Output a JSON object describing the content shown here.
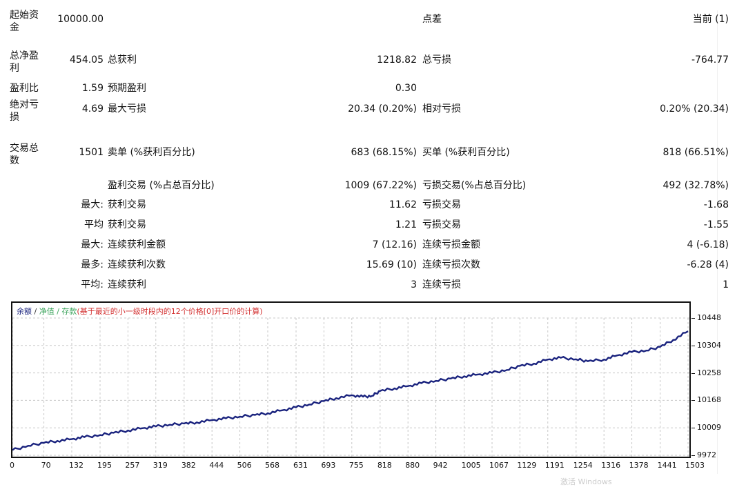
{
  "report": {
    "rows": [
      {
        "l1": "起始资金",
        "v1": "10000.00",
        "l2": "",
        "v2": "",
        "l3": "点差",
        "v3": "当前 (1)"
      },
      {
        "l1": "总净盈利",
        "v1": "454.05",
        "l2": "总获利",
        "v2": "1218.82",
        "l3": "总亏损",
        "v3": "-764.77"
      },
      {
        "l1": "盈利比",
        "v1": "1.59",
        "l2": "预期盈利",
        "v2": "0.30",
        "l3": "",
        "v3": ""
      },
      {
        "l1": "绝对亏损",
        "v1": "4.69",
        "l2": "最大亏损",
        "v2": "20.34 (0.20%)",
        "l3": "相对亏损",
        "v3": "0.20% (20.34)"
      },
      {
        "l1": "交易总数",
        "v1": "1501",
        "l2": "卖单 (%获利百分比)",
        "v2": "683 (68.15%)",
        "l3": "买单 (%获利百分比)",
        "v3": "818 (66.51%)"
      },
      {
        "l1": "",
        "v1": "",
        "l2": "盈利交易 (%占总百分比)",
        "v2": "1009 (67.22%)",
        "l3": "亏损交易(%占总百分比)",
        "v3": "492 (32.78%)"
      },
      {
        "l1": "",
        "v1": "最大:",
        "l2": "获利交易",
        "v2": "11.62",
        "l3": "亏损交易",
        "v3": "-1.68"
      },
      {
        "l1": "",
        "v1": "平均",
        "l2": "获利交易",
        "v2": "1.21",
        "l3": "亏损交易",
        "v3": "-1.55"
      },
      {
        "l1": "",
        "v1": "最大:",
        "l2": "连续获利金额",
        "v2": "7 (12.16)",
        "l3": "连续亏损金额",
        "v3": "4 (-6.18)"
      },
      {
        "l1": "",
        "v1": "最多:",
        "l2": "连续获利次数",
        "v2": "15.69 (10)",
        "l3": "连续亏损次数",
        "v3": "-6.28 (4)"
      },
      {
        "l1": "",
        "v1": "平均:",
        "l2": "连续获利",
        "v2": "3",
        "l3": "连续亏损",
        "v3": "1"
      }
    ]
  },
  "chart": {
    "legend": {
      "balance": "余额",
      "sep": " / ",
      "equity": "净值",
      "deposit": " / 存款",
      "note": "(基于最近的小一级时段内的12个价格[0]开口价的计算)"
    }
  },
  "chart_data": {
    "type": "line",
    "title": "余额 / 净值 / 存款",
    "xlabel": "",
    "ylabel": "",
    "x_ticks": [
      "0",
      "70",
      "132",
      "195",
      "257",
      "319",
      "382",
      "444",
      "506",
      "568",
      "631",
      "693",
      "755",
      "818",
      "880",
      "942",
      "1005",
      "1067",
      "1129",
      "1191",
      "1254",
      "1316",
      "1378",
      "1441",
      "1503"
    ],
    "y_ticks": [
      "10448",
      "10304",
      "10258",
      "10168",
      "10009",
      "9972"
    ],
    "ylim": [
      9972,
      10448
    ],
    "xlim": [
      0,
      1503
    ],
    "grid": true,
    "series": [
      {
        "name": "余额",
        "color": "#1a237e",
        "x": [
          0,
          35,
          70,
          100,
          132,
          160,
          195,
          225,
          257,
          290,
          319,
          350,
          382,
          410,
          444,
          475,
          506,
          540,
          568,
          600,
          631,
          660,
          693,
          720,
          755,
          780,
          800,
          818,
          850,
          880,
          910,
          942,
          975,
          1005,
          1035,
          1067,
          1100,
          1129,
          1160,
          1191,
          1220,
          1254,
          1280,
          1316,
          1345,
          1378,
          1410,
          1441,
          1470,
          1503
        ],
        "values": [
          9990,
          10005,
          10015,
          10022,
          10028,
          10035,
          10042,
          10050,
          10058,
          10066,
          10072,
          10078,
          10082,
          10086,
          10094,
          10100,
          10106,
          10112,
          10118,
          10128,
          10138,
          10148,
          10160,
          10170,
          10180,
          10175,
          10178,
          10195,
          10204,
          10212,
          10222,
          10230,
          10238,
          10246,
          10252,
          10258,
          10268,
          10282,
          10290,
          10304,
          10310,
          10305,
          10298,
          10304,
          10318,
          10330,
          10335,
          10348,
          10372,
          10402
        ]
      }
    ]
  },
  "watermark": "激活 Windows"
}
